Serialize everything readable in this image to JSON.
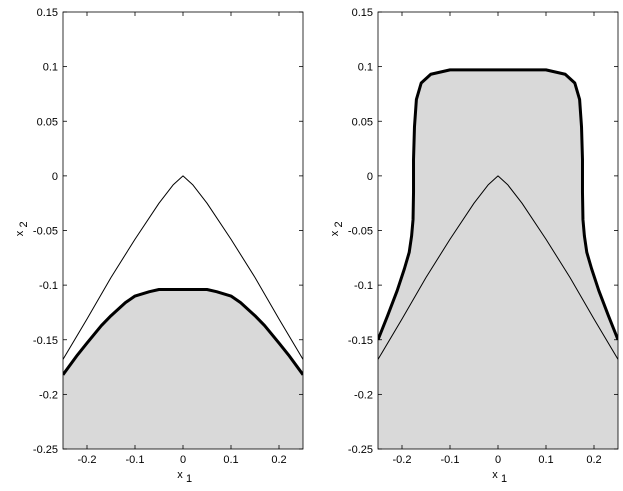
{
  "chart_data": [
    {
      "type": "area",
      "xlabel": "x",
      "xlabel_sub": "1",
      "ylabel": "x",
      "ylabel_sub": "2",
      "xlim": [
        -0.25,
        0.25
      ],
      "ylim": [
        -0.25,
        0.15
      ],
      "xticks": [
        -0.2,
        -0.1,
        0,
        0.1,
        0.2
      ],
      "xtick_labels": [
        "-0.2",
        "-0.1",
        "0",
        "0.1",
        "0.2"
      ],
      "yticks": [
        0.15,
        0.1,
        0.05,
        0,
        -0.05,
        -0.1,
        -0.15,
        -0.2,
        -0.25
      ],
      "ytick_labels": [
        "0.15",
        "0.1",
        "0.05",
        "0",
        "-0.05",
        "-0.1",
        "-0.15",
        "-0.2",
        "-0.25"
      ],
      "grid": false,
      "fill_color": "#d9d9d9",
      "series": [
        {
          "style": "thin",
          "x": [
            -0.25,
            -0.2,
            -0.15,
            -0.1,
            -0.05,
            -0.02,
            0,
            0.02,
            0.05,
            0.1,
            0.15,
            0.2,
            0.25
          ],
          "y": [
            -0.168,
            -0.131,
            -0.093,
            -0.058,
            -0.025,
            -0.008,
            0.0,
            -0.008,
            -0.025,
            -0.058,
            -0.093,
            -0.131,
            -0.168
          ]
        },
        {
          "style": "thick-filled-below",
          "x": [
            -0.25,
            -0.22,
            -0.2,
            -0.17,
            -0.15,
            -0.12,
            -0.1,
            -0.07,
            -0.05,
            0,
            0.05,
            0.07,
            0.1,
            0.12,
            0.15,
            0.17,
            0.2,
            0.22,
            0.25
          ],
          "y": [
            -0.182,
            -0.164,
            -0.153,
            -0.137,
            -0.128,
            -0.116,
            -0.11,
            -0.106,
            -0.104,
            -0.104,
            -0.104,
            -0.106,
            -0.11,
            -0.116,
            -0.128,
            -0.137,
            -0.153,
            -0.164,
            -0.182
          ]
        }
      ]
    },
    {
      "type": "area",
      "xlabel": "x",
      "xlabel_sub": "1",
      "ylabel": "x",
      "ylabel_sub": "2",
      "xlim": [
        -0.25,
        0.25
      ],
      "ylim": [
        -0.25,
        0.15
      ],
      "xticks": [
        -0.2,
        -0.1,
        0,
        0.1,
        0.2
      ],
      "xtick_labels": [
        "-0.2",
        "-0.1",
        "0",
        "0.1",
        "0.2"
      ],
      "yticks": [
        0.15,
        0.1,
        0.05,
        0,
        -0.05,
        -0.1,
        -0.15,
        -0.2,
        -0.25
      ],
      "ytick_labels": [
        "0.15",
        "0.1",
        "0.05",
        "0",
        "-0.05",
        "-0.1",
        "-0.15",
        "-0.2",
        "-0.25"
      ],
      "grid": false,
      "fill_color": "#d9d9d9",
      "series": [
        {
          "style": "thin",
          "x": [
            -0.25,
            -0.2,
            -0.15,
            -0.1,
            -0.05,
            -0.02,
            0,
            0.02,
            0.05,
            0.1,
            0.15,
            0.2,
            0.25
          ],
          "y": [
            -0.168,
            -0.131,
            -0.093,
            -0.058,
            -0.025,
            -0.008,
            0.0,
            -0.008,
            -0.025,
            -0.058,
            -0.093,
            -0.131,
            -0.168
          ]
        },
        {
          "style": "thick-filled-below",
          "x": [
            -0.25,
            -0.23,
            -0.21,
            -0.195,
            -0.185,
            -0.18,
            -0.177,
            -0.176,
            -0.176,
            -0.174,
            -0.17,
            -0.16,
            -0.14,
            -0.1,
            -0.05,
            0,
            0.05,
            0.1,
            0.14,
            0.16,
            0.17,
            0.174,
            0.176,
            0.176,
            0.177,
            0.18,
            0.185,
            0.195,
            0.21,
            0.23,
            0.25
          ],
          "y": [
            -0.15,
            -0.128,
            -0.105,
            -0.085,
            -0.07,
            -0.055,
            -0.04,
            -0.015,
            0.015,
            0.045,
            0.07,
            0.085,
            0.093,
            0.097,
            0.097,
            0.097,
            0.097,
            0.097,
            0.093,
            0.085,
            0.07,
            0.045,
            0.015,
            -0.015,
            -0.04,
            -0.055,
            -0.07,
            -0.085,
            -0.105,
            -0.128,
            -0.15
          ]
        }
      ]
    }
  ]
}
